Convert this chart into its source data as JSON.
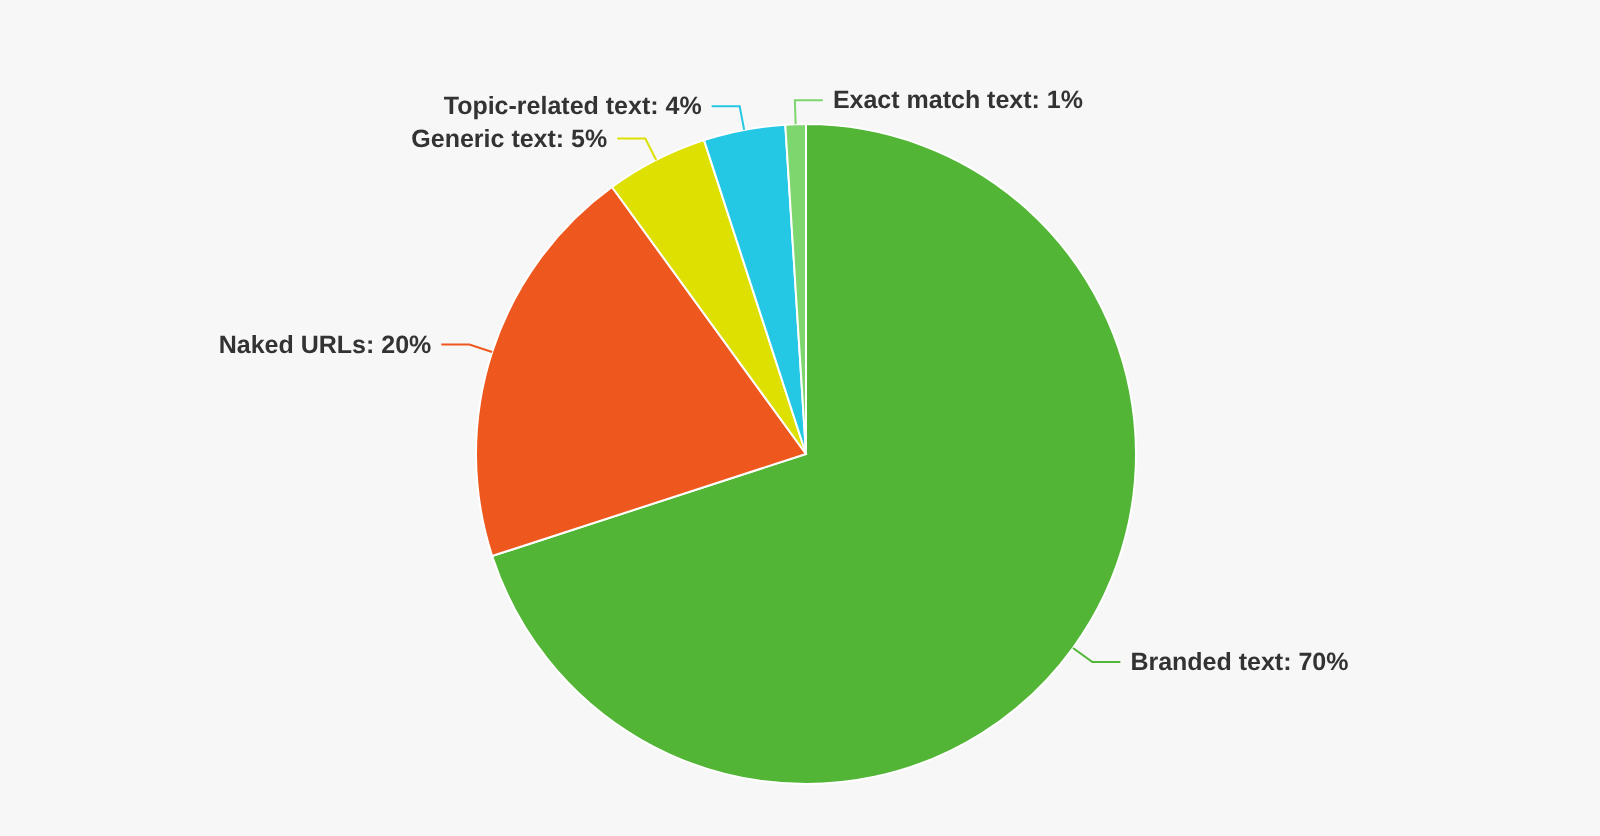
{
  "chart_data": {
    "type": "pie",
    "categories": [
      "Branded text",
      "Naked URLs",
      "Generic text",
      "Topic-related text",
      "Exact match text"
    ],
    "values": [
      70,
      20,
      5,
      4,
      1
    ],
    "colors": [
      "#52b536",
      "#ee581e",
      "#dde000",
      "#25c8e4",
      "#7ed66e"
    ],
    "value_labels": [
      "70%",
      "20%",
      "5%",
      "4%",
      "1%"
    ]
  }
}
